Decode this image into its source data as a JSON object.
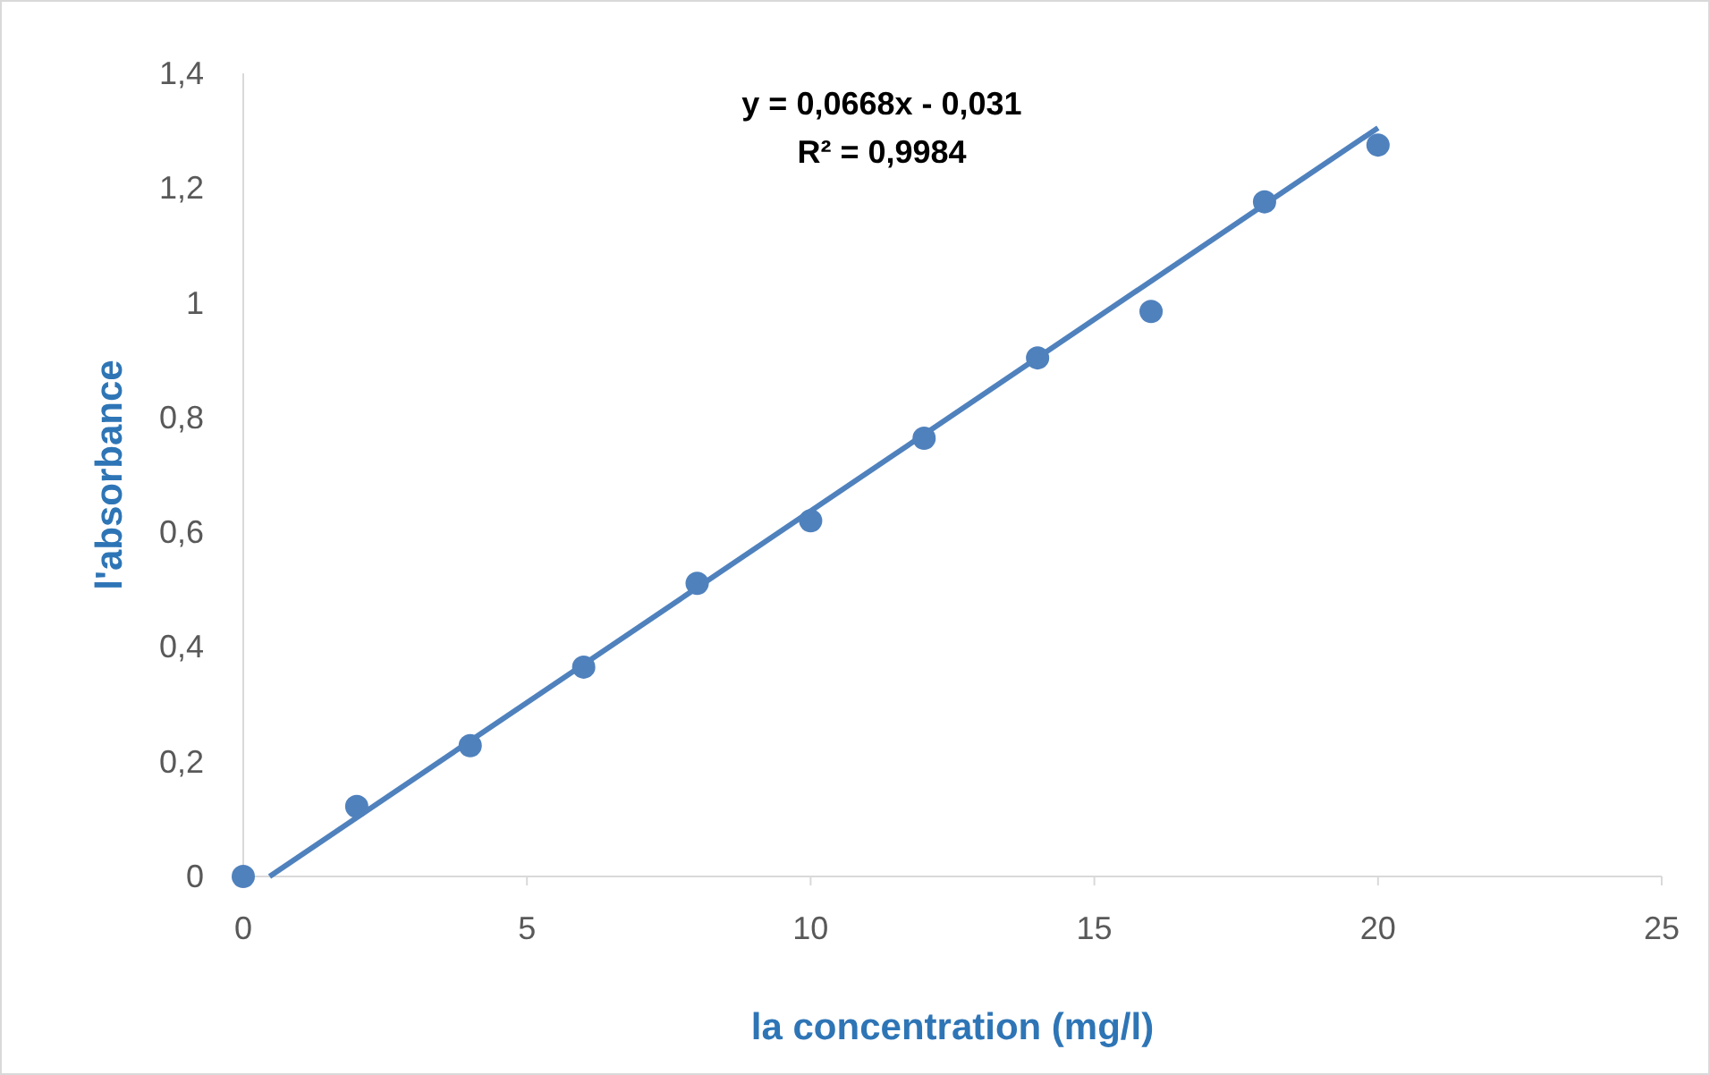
{
  "chart_data": {
    "type": "scatter",
    "xlabel": "la concentration (mg/l)",
    "ylabel": "l'absorbance",
    "xlim": [
      0,
      25
    ],
    "xticks": [
      0,
      5,
      10,
      15,
      20,
      25
    ],
    "ylim": [
      0,
      1.4
    ],
    "yticks": [
      0,
      {
        "value": 0.2,
        "label": "0,2"
      },
      {
        "value": 0.4,
        "label": "0,4"
      },
      {
        "value": 0.6,
        "label": "0,6"
      },
      {
        "value": 0.8,
        "label": "0,8"
      },
      1,
      {
        "value": 1.2,
        "label": "1,2"
      },
      {
        "value": 1.4,
        "label": "1,4"
      }
    ],
    "grid": false,
    "annotations": [
      "y = 0,0668x - 0,031",
      "R² = 0,9984"
    ],
    "series": [
      {
        "marker": "circle",
        "color": "#4f81bd",
        "x": [
          0,
          2,
          4,
          6,
          8,
          10,
          12,
          14,
          16,
          18,
          20
        ],
        "values": [
          0,
          0.122,
          0.228,
          0.365,
          0.511,
          0.62,
          0.764,
          0.904,
          0.985,
          1.176,
          1.275
        ]
      },
      {
        "type": "line",
        "color": "#4f81bd",
        "x": [
          0.464,
          20
        ],
        "values": [
          0,
          1.305
        ]
      }
    ]
  }
}
